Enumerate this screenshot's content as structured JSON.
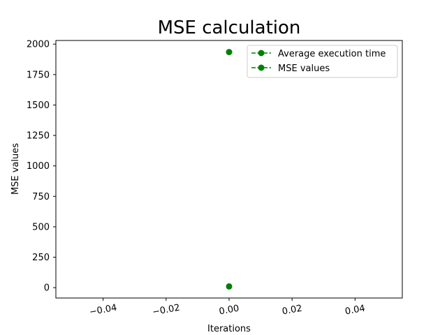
{
  "chart_data": {
    "type": "line",
    "title": "MSE calculation",
    "xlabel": "Iterations",
    "ylabel": "MSE values",
    "xlim": [
      -0.055,
      0.055
    ],
    "ylim": [
      -85,
      2030
    ],
    "x_ticks": [
      -0.04,
      -0.02,
      0.0,
      0.02,
      0.04
    ],
    "x_tick_labels": [
      "−0.04",
      "−0.02",
      "0.00",
      "0.02",
      "0.04"
    ],
    "y_ticks": [
      0,
      250,
      500,
      750,
      1000,
      1250,
      1500,
      1750,
      2000
    ],
    "y_tick_labels": [
      "0",
      "250",
      "500",
      "750",
      "1000",
      "1250",
      "1500",
      "1750",
      "2000"
    ],
    "grid": false,
    "legend_position": "top-right",
    "series": [
      {
        "name": "Average execution time",
        "color": "#008000",
        "linestyle": "dashed",
        "marker": "circle",
        "x": [
          0.0
        ],
        "y": [
          10
        ]
      },
      {
        "name": "MSE values",
        "color": "#008000",
        "linestyle": "dashed",
        "marker": "circle",
        "x": [
          0.0
        ],
        "y": [
          1935
        ]
      }
    ]
  }
}
